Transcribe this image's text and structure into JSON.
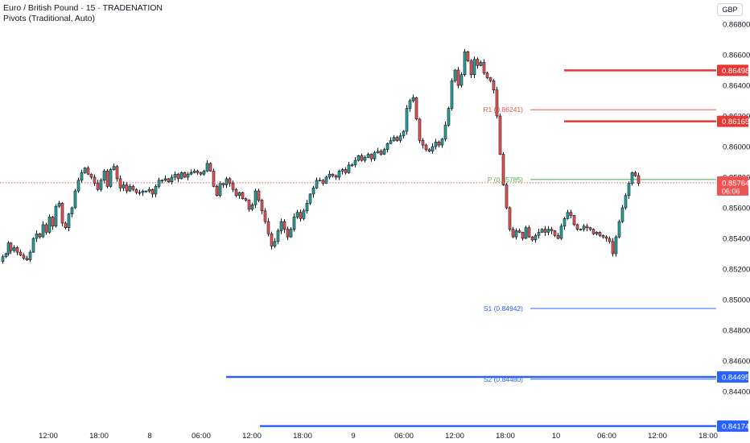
{
  "header": {
    "title": "Euro / British Pound · 15 · TRADENATION",
    "indicator": "Pivots (Traditional, Auto)"
  },
  "currency_label": "GBP",
  "colors": {
    "up": "#26a69a",
    "down": "#ef5350",
    "wick": "#131722",
    "body_up": "#131722",
    "body_down": "#131722",
    "red_level": "#e53935",
    "blue_level": "#2962ff",
    "pivot_green": "#4caf50",
    "r1_red": "#ef5350",
    "s_blue": "#2962ff",
    "price_line": "#ef5350",
    "axis_text": "#131722"
  },
  "chart_data": {
    "type": "candlestick",
    "symbol": "EURGBP",
    "interval": "15",
    "ylim": [
      0.8404,
      0.8688
    ],
    "y_ticks": [
      "0.86800",
      "0.86600",
      "0.86400",
      "0.86200",
      "0.86000",
      "0.85800",
      "0.85600",
      "0.85400",
      "0.85200",
      "0.85000",
      "0.84800",
      "0.84600",
      "0.84400"
    ],
    "x_ticks": [
      "12:00",
      "18:00",
      "8",
      "06:00",
      "12:00",
      "18:00",
      "9",
      "06:00",
      "12:00",
      "18:00",
      "10",
      "06:00",
      "12:00",
      "18:00"
    ],
    "current_price": {
      "value": 0.85764,
      "label": "0.85764",
      "countdown": "06:06"
    },
    "pivots": [
      {
        "name": "R1",
        "value": 0.86241,
        "label": "R1 (0.86241)"
      },
      {
        "name": "P",
        "value": 0.85785,
        "label": "P (0.85785)"
      },
      {
        "name": "S1",
        "value": 0.84942,
        "label": "S1 (0.84942)"
      },
      {
        "name": "S2",
        "value": 0.8448,
        "label": "S2 (0.84480)"
      }
    ],
    "levels": [
      {
        "value": 0.86498,
        "label": "0.86498",
        "color": "red"
      },
      {
        "value": 0.86165,
        "label": "0.86165",
        "color": "red"
      },
      {
        "value": 0.84495,
        "label": "0.84495",
        "color": "blue"
      },
      {
        "value": 0.84174,
        "label": "0.84174",
        "color": "blue"
      }
    ],
    "price_path": [
      [
        0,
        0.8525
      ],
      [
        4,
        0.8528
      ],
      [
        8,
        0.853
      ],
      [
        10,
        0.8537
      ],
      [
        14,
        0.8532
      ],
      [
        18,
        0.8534
      ],
      [
        22,
        0.8531
      ],
      [
        26,
        0.8529
      ],
      [
        30,
        0.8527
      ],
      [
        34,
        0.8526
      ],
      [
        38,
        0.8531
      ],
      [
        42,
        0.854
      ],
      [
        46,
        0.8543
      ],
      [
        50,
        0.8541
      ],
      [
        54,
        0.8549
      ],
      [
        58,
        0.8544
      ],
      [
        62,
        0.8554
      ],
      [
        66,
        0.8548
      ],
      [
        70,
        0.8561
      ],
      [
        74,
        0.8563
      ],
      [
        78,
        0.855
      ],
      [
        82,
        0.8547
      ],
      [
        86,
        0.8556
      ],
      [
        90,
        0.856
      ],
      [
        94,
        0.8571
      ],
      [
        98,
        0.8578
      ],
      [
        102,
        0.8583
      ],
      [
        106,
        0.8586
      ],
      [
        110,
        0.8582
      ],
      [
        114,
        0.858
      ],
      [
        118,
        0.8576
      ],
      [
        122,
        0.8572
      ],
      [
        126,
        0.8578
      ],
      [
        130,
        0.8584
      ],
      [
        134,
        0.8574
      ],
      [
        138,
        0.8585
      ],
      [
        142,
        0.8587
      ],
      [
        146,
        0.8579
      ],
      [
        150,
        0.8573
      ],
      [
        154,
        0.8575
      ],
      [
        158,
        0.8571
      ],
      [
        162,
        0.8574
      ],
      [
        166,
        0.8572
      ],
      [
        170,
        0.857
      ],
      [
        174,
        0.857
      ],
      [
        178,
        0.8571
      ],
      [
        182,
        0.8571
      ],
      [
        186,
        0.8572
      ],
      [
        190,
        0.8569
      ],
      [
        194,
        0.8574
      ],
      [
        198,
        0.8578
      ],
      [
        202,
        0.8578
      ],
      [
        206,
        0.8579
      ],
      [
        210,
        0.8577
      ],
      [
        214,
        0.858
      ],
      [
        218,
        0.8582
      ],
      [
        222,
        0.8579
      ],
      [
        226,
        0.8583
      ],
      [
        230,
        0.858
      ],
      [
        234,
        0.8582
      ],
      [
        238,
        0.8583
      ],
      [
        242,
        0.8584
      ],
      [
        246,
        0.8583
      ],
      [
        250,
        0.8582
      ],
      [
        254,
        0.8584
      ],
      [
        258,
        0.8589
      ],
      [
        262,
        0.8584
      ],
      [
        266,
        0.8574
      ],
      [
        270,
        0.8568
      ],
      [
        274,
        0.8576
      ],
      [
        278,
        0.8575
      ],
      [
        282,
        0.8579
      ],
      [
        286,
        0.8576
      ],
      [
        290,
        0.8572
      ],
      [
        294,
        0.8568
      ],
      [
        298,
        0.857
      ],
      [
        302,
        0.8566
      ],
      [
        306,
        0.8565
      ],
      [
        310,
        0.8559
      ],
      [
        314,
        0.8562
      ],
      [
        318,
        0.8571
      ],
      [
        322,
        0.8565
      ],
      [
        326,
        0.8558
      ],
      [
        330,
        0.8551
      ],
      [
        334,
        0.8543
      ],
      [
        338,
        0.8535
      ],
      [
        342,
        0.8538
      ],
      [
        346,
        0.8545
      ],
      [
        350,
        0.8551
      ],
      [
        354,
        0.8546
      ],
      [
        358,
        0.8541
      ],
      [
        362,
        0.8546
      ],
      [
        366,
        0.8554
      ],
      [
        370,
        0.8557
      ],
      [
        374,
        0.8553
      ],
      [
        378,
        0.8558
      ],
      [
        382,
        0.8563
      ],
      [
        386,
        0.8569
      ],
      [
        390,
        0.8573
      ],
      [
        394,
        0.8578
      ],
      [
        398,
        0.8578
      ],
      [
        402,
        0.8576
      ],
      [
        406,
        0.858
      ],
      [
        410,
        0.8582
      ],
      [
        414,
        0.8581
      ],
      [
        418,
        0.858
      ],
      [
        422,
        0.8584
      ],
      [
        426,
        0.8585
      ],
      [
        430,
        0.8583
      ],
      [
        434,
        0.8588
      ],
      [
        438,
        0.8588
      ],
      [
        442,
        0.8591
      ],
      [
        446,
        0.8594
      ],
      [
        450,
        0.8591
      ],
      [
        454,
        0.8593
      ],
      [
        458,
        0.8595
      ],
      [
        462,
        0.8592
      ],
      [
        466,
        0.8596
      ],
      [
        470,
        0.8597
      ],
      [
        474,
        0.8595
      ],
      [
        478,
        0.8598
      ],
      [
        482,
        0.8602
      ],
      [
        486,
        0.8604
      ],
      [
        490,
        0.8606
      ],
      [
        494,
        0.8604
      ],
      [
        498,
        0.8607
      ],
      [
        502,
        0.861
      ],
      [
        506,
        0.8625
      ],
      [
        510,
        0.863
      ],
      [
        514,
        0.8632
      ],
      [
        518,
        0.8618
      ],
      [
        522,
        0.8604
      ],
      [
        526,
        0.8601
      ],
      [
        530,
        0.8598
      ],
      [
        534,
        0.8597
      ],
      [
        538,
        0.86
      ],
      [
        542,
        0.8603
      ],
      [
        546,
        0.8601
      ],
      [
        550,
        0.8605
      ],
      [
        554,
        0.8614
      ],
      [
        558,
        0.8625
      ],
      [
        562,
        0.8643
      ],
      [
        566,
        0.865
      ],
      [
        570,
        0.864
      ],
      [
        574,
        0.8647
      ],
      [
        578,
        0.8662
      ],
      [
        582,
        0.8656
      ],
      [
        586,
        0.8647
      ],
      [
        590,
        0.8657
      ],
      [
        594,
        0.8653
      ],
      [
        598,
        0.8655
      ],
      [
        602,
        0.8648
      ],
      [
        606,
        0.8645
      ],
      [
        610,
        0.8643
      ],
      [
        614,
        0.8637
      ],
      [
        618,
        0.862
      ],
      [
        622,
        0.8595
      ],
      [
        626,
        0.8575
      ],
      [
        630,
        0.856
      ],
      [
        634,
        0.8546
      ],
      [
        638,
        0.8541
      ],
      [
        642,
        0.8545
      ],
      [
        646,
        0.8544
      ],
      [
        650,
        0.854
      ],
      [
        654,
        0.8547
      ],
      [
        658,
        0.8541
      ],
      [
        662,
        0.8539
      ],
      [
        666,
        0.8542
      ],
      [
        670,
        0.8544
      ],
      [
        674,
        0.8546
      ],
      [
        678,
        0.8544
      ],
      [
        682,
        0.8546
      ],
      [
        686,
        0.8545
      ],
      [
        690,
        0.8542
      ],
      [
        694,
        0.854
      ],
      [
        698,
        0.8548
      ],
      [
        702,
        0.8553
      ],
      [
        706,
        0.8557
      ],
      [
        710,
        0.8555
      ],
      [
        714,
        0.8549
      ],
      [
        718,
        0.8546
      ],
      [
        722,
        0.8546
      ],
      [
        726,
        0.8548
      ],
      [
        730,
        0.8547
      ],
      [
        734,
        0.8546
      ],
      [
        738,
        0.8543
      ],
      [
        742,
        0.8544
      ],
      [
        746,
        0.8542
      ],
      [
        750,
        0.8541
      ],
      [
        754,
        0.854
      ],
      [
        758,
        0.8538
      ],
      [
        762,
        0.853
      ],
      [
        766,
        0.8541
      ],
      [
        770,
        0.8551
      ],
      [
        774,
        0.856
      ],
      [
        778,
        0.8568
      ],
      [
        782,
        0.8576
      ],
      [
        786,
        0.8583
      ],
      [
        790,
        0.8581
      ],
      [
        794,
        0.8576
      ]
    ]
  }
}
